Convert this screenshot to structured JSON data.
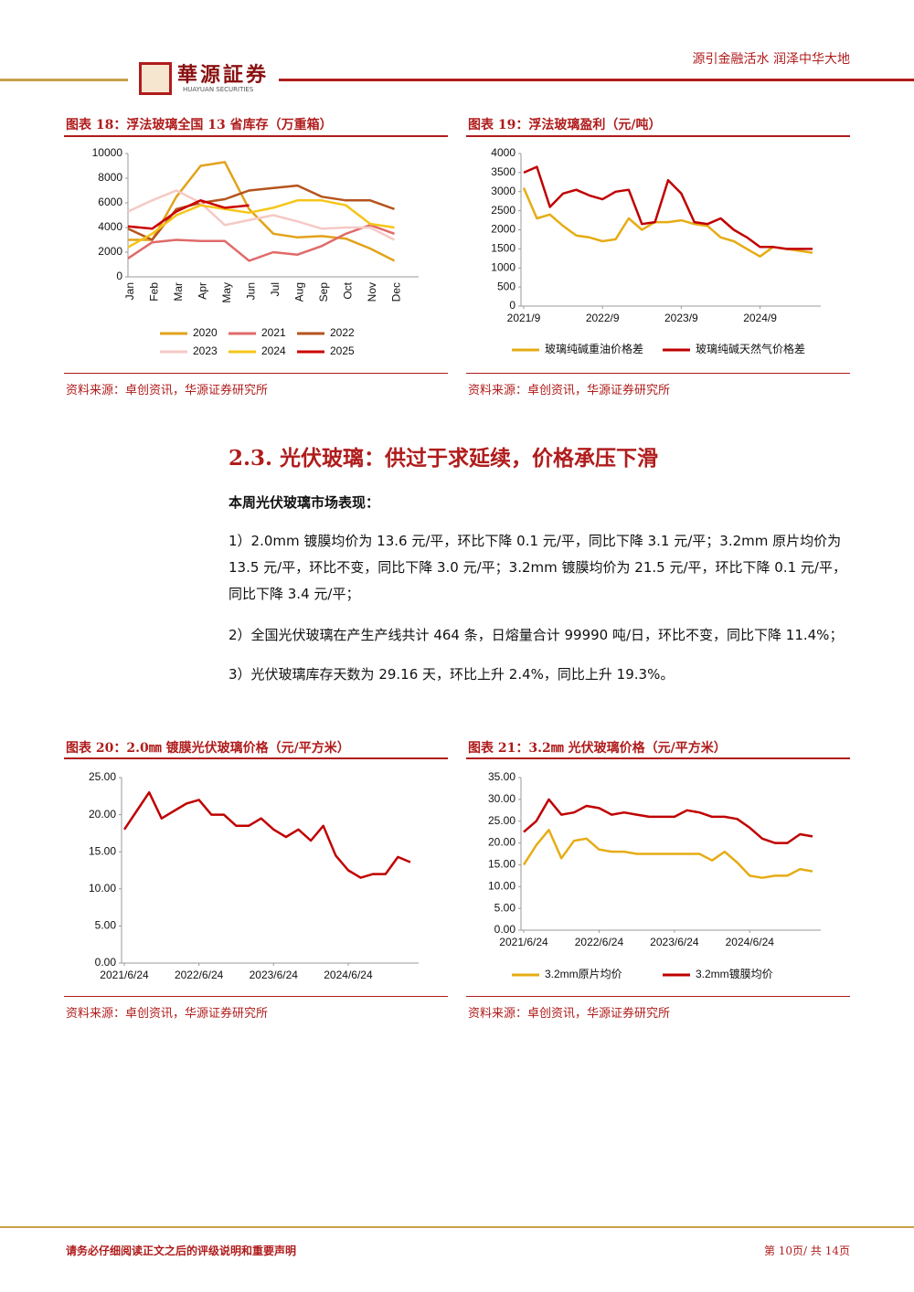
{
  "header": {
    "logo": "華源証券",
    "logo_en": "HUAYUAN SECURITIES",
    "slogan": "源引金融活水 润泽中华大地"
  },
  "chart_data": [
    {
      "type": "line",
      "title": "图表 18：浮法玻璃全国 13 省库存（万重箱）",
      "source": "资料来源：卓创资讯，华源证券研究所",
      "categories": [
        "Jan",
        "Feb",
        "Mar",
        "Apr",
        "May",
        "Jun",
        "Jul",
        "Aug",
        "Sep",
        "Oct",
        "Nov",
        "Dec"
      ],
      "ylim": [
        0,
        10000
      ],
      "yticks": [
        0,
        2000,
        4000,
        6000,
        8000,
        10000
      ],
      "legend": "bottom",
      "series": [
        {
          "name": "2020",
          "color": "#e3a21a",
          "values": [
            3000,
            3000,
            6500,
            9000,
            9300,
            5500,
            3500,
            3200,
            3300,
            3100,
            2300,
            1300
          ]
        },
        {
          "name": "2021",
          "color": "#e06a6a",
          "values": [
            1500,
            2800,
            3000,
            2900,
            2900,
            1300,
            2000,
            1800,
            2500,
            3500,
            4200,
            3500
          ]
        },
        {
          "name": "2022",
          "color": "#b5541c",
          "values": [
            3900,
            3000,
            5500,
            6000,
            6300,
            7000,
            7200,
            7400,
            6500,
            6200,
            6200,
            5500
          ]
        },
        {
          "name": "2023",
          "color": "#f6c9c4",
          "values": [
            5300,
            6200,
            7000,
            6000,
            4200,
            4600,
            5000,
            4500,
            3900,
            4000,
            4000,
            3000
          ]
        },
        {
          "name": "2024",
          "color": "#f5c518",
          "values": [
            2400,
            3500,
            5000,
            5800,
            5500,
            5200,
            5600,
            6200,
            6200,
            5800,
            4300,
            4000
          ]
        },
        {
          "name": "2025",
          "color": "#cc0000",
          "values": [
            4100,
            3900,
            5300,
            6200,
            5600,
            5800,
            null,
            null,
            null,
            null,
            null,
            null
          ]
        }
      ]
    },
    {
      "type": "line",
      "title": "图表 19：浮法玻璃盈利（元/吨）",
      "source": "资料来源：卓创资讯，华源证券研究所",
      "x": [
        "2021/9",
        "2021/11",
        "2022/1",
        "2022/3",
        "2022/5",
        "2022/7",
        "2022/9",
        "2022/11",
        "2023/1",
        "2023/3",
        "2023/5",
        "2023/7",
        "2023/9",
        "2023/11",
        "2024/1",
        "2024/3",
        "2024/5",
        "2024/7",
        "2024/9",
        "2024/11",
        "2025/1",
        "2025/3",
        "2025/5"
      ],
      "xticks": [
        "2021/9",
        "2022/9",
        "2023/9",
        "2024/9"
      ],
      "ylim": [
        0,
        4000
      ],
      "yticks": [
        0,
        500,
        1000,
        1500,
        2000,
        2500,
        3000,
        3500,
        4000
      ],
      "legend": "bottom",
      "series": [
        {
          "name": "玻璃纯碱重油价格差",
          "color": "#e6ac14",
          "values": [
            3100,
            2300,
            2400,
            2100,
            1850,
            1800,
            1700,
            1750,
            2300,
            2000,
            2200,
            2200,
            2250,
            2150,
            2100,
            1800,
            1700,
            1500,
            1300,
            1550,
            1500,
            1450,
            1400
          ]
        },
        {
          "name": "玻璃纯碱天然气价格差",
          "color": "#c00000",
          "values": [
            3500,
            3650,
            2600,
            2950,
            3050,
            2900,
            2800,
            3000,
            3050,
            2150,
            2200,
            3300,
            2950,
            2200,
            2150,
            2300,
            2000,
            1800,
            1550,
            1550,
            1500,
            1500,
            1500
          ]
        }
      ]
    },
    {
      "type": "line",
      "title": "图表 20：2.0㎜ 镀膜光伏玻璃价格（元/平方米）",
      "source": "资料来源：卓创资讯，华源证券研究所",
      "x": [
        "2021/6/24",
        "2021/8/24",
        "2021/10/24",
        "2021/12/24",
        "2022/2/24",
        "2022/4/24",
        "2022/6/24",
        "2022/8/24",
        "2022/10/24",
        "2022/12/24",
        "2023/2/24",
        "2023/4/24",
        "2023/6/24",
        "2023/8/24",
        "2023/10/24",
        "2023/12/24",
        "2024/2/24",
        "2024/4/24",
        "2024/6/24",
        "2024/8/24",
        "2024/10/24",
        "2024/12/24",
        "2025/2/24",
        "2025/4/24"
      ],
      "xticks": [
        "2021/6/24",
        "2022/6/24",
        "2023/6/24",
        "2024/6/24"
      ],
      "ylim": [
        0,
        25
      ],
      "yticks": [
        {
          "value": 0,
          "label": "0.00"
        },
        {
          "value": 5,
          "label": "5.00"
        },
        {
          "value": 10,
          "label": "10.00"
        },
        {
          "value": 15,
          "label": "15.00"
        },
        {
          "value": 20,
          "label": "20.00"
        },
        {
          "value": 25,
          "label": "25.00"
        }
      ],
      "series": [
        {
          "color": "#c00000",
          "values": [
            18,
            20.5,
            23,
            19.5,
            20.5,
            21.5,
            22,
            20,
            20,
            18.5,
            18.5,
            19.5,
            18,
            17,
            18,
            16.5,
            18.5,
            14.5,
            12.5,
            11.5,
            12,
            12,
            14.3,
            13.6
          ]
        }
      ]
    },
    {
      "type": "line",
      "title": "图表 21：3.2㎜ 光伏玻璃价格（元/平方米）",
      "source": "资料来源：卓创资讯，华源证券研究所",
      "x": [
        "2021/6/24",
        "2021/8/24",
        "2021/10/24",
        "2021/12/24",
        "2022/2/24",
        "2022/4/24",
        "2022/6/24",
        "2022/8/24",
        "2022/10/24",
        "2022/12/24",
        "2023/2/24",
        "2023/4/24",
        "2023/6/24",
        "2023/8/24",
        "2023/10/24",
        "2023/12/24",
        "2024/2/24",
        "2024/4/24",
        "2024/6/24",
        "2024/8/24",
        "2024/10/24",
        "2024/12/24",
        "2025/2/24",
        "2025/4/24"
      ],
      "xticks": [
        "2021/6/24",
        "2022/6/24",
        "2023/6/24",
        "2024/6/24"
      ],
      "ylim": [
        0,
        35
      ],
      "yticks": [
        {
          "value": 0,
          "label": "0.00"
        },
        {
          "value": 5,
          "label": "5.00"
        },
        {
          "value": 10,
          "label": "10.00"
        },
        {
          "value": 15,
          "label": "15.00"
        },
        {
          "value": 20,
          "label": "20.00"
        },
        {
          "value": 25,
          "label": "25.00"
        },
        {
          "value": 30,
          "label": "30.00"
        },
        {
          "value": 35,
          "label": "35.00"
        }
      ],
      "legend": "bottom",
      "series": [
        {
          "name": "3.2mm原片均价",
          "color": "#e6ac14",
          "values": [
            15,
            19.5,
            23,
            16.5,
            20.5,
            21,
            18.5,
            18,
            18,
            17.5,
            17.5,
            17.5,
            17.5,
            17.5,
            17.5,
            16,
            18,
            15.5,
            12.5,
            12,
            12.5,
            12.5,
            14,
            13.5
          ]
        },
        {
          "name": "3.2mm镀膜均价",
          "color": "#c00000",
          "values": [
            22.5,
            25,
            30,
            26.5,
            27,
            28.5,
            28,
            26.5,
            27,
            26.5,
            26,
            26,
            26,
            27.5,
            27,
            26,
            26,
            25.5,
            23.5,
            21,
            20,
            20,
            22,
            21.5
          ]
        }
      ]
    }
  ],
  "section": {
    "heading": "2.3. 光伏玻璃：供过于求延续，价格承压下滑",
    "subheading": "本周光伏玻璃市场表现：",
    "paragraphs": [
      "1）2.0mm 镀膜均价为 13.6 元/平，环比下降 0.1 元/平，同比下降 3.1 元/平；3.2mm 原片均价为 13.5 元/平，环比不变，同比下降 3.0 元/平；3.2mm 镀膜均价为 21.5 元/平，环比下降 0.1 元/平，同比下降 3.4 元/平；",
      "2）全国光伏玻璃在产生产线共计 464 条，日熔量合计 99990 吨/日，环比不变，同比下降 11.4%；",
      "3）光伏玻璃库存天数为 29.16 天，环比上升 2.4%，同比上升 19.3%。"
    ]
  },
  "footer": {
    "disclaimer": "请务必仔细阅读正文之后的评级说明和重要声明",
    "page": "第 10页/ 共 14页"
  }
}
